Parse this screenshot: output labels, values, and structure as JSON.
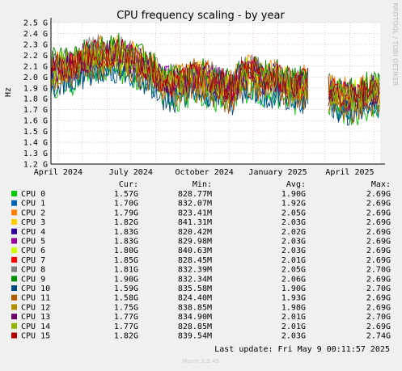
{
  "chart_data": {
    "type": "line",
    "title": "CPU frequency scaling - by year",
    "ylabel": "Hz",
    "side_label": "RRDTOOL / TOBI OETIKER",
    "x_range": [
      "2024-03-23",
      "2025-05-09"
    ],
    "x_ticks": [
      {
        "label": "April 2024",
        "date": "2024-04-01"
      },
      {
        "label": "July 2024",
        "date": "2024-07-01"
      },
      {
        "label": "October 2024",
        "date": "2024-10-01"
      },
      {
        "label": "January 2025",
        "date": "2025-01-01"
      },
      {
        "label": "April 2025",
        "date": "2025-04-01"
      }
    ],
    "y_range_ghz": [
      1.2,
      2.5
    ],
    "y_ticks": [
      "1.2 G",
      "1.3 G",
      "1.4 G",
      "1.5 G",
      "1.6 G",
      "1.7 G",
      "1.8 G",
      "1.9 G",
      "2.0 G",
      "2.1 G",
      "2.2 G",
      "2.3 G",
      "2.4 G",
      "2.5 G"
    ],
    "grid": true,
    "legend_placement": "bottom",
    "columns": [
      "Cur:",
      "Min:",
      "Avg:",
      "Max:"
    ],
    "gap": [
      "2025-02-08",
      "2025-03-05"
    ],
    "avg_profile_ghz": [
      [
        "2024-03-23",
        2.06
      ],
      [
        "2024-04-06",
        2.07
      ],
      [
        "2024-04-20",
        2.08
      ],
      [
        "2024-05-04",
        2.15
      ],
      [
        "2024-05-18",
        2.2
      ],
      [
        "2024-06-01",
        2.18
      ],
      [
        "2024-06-15",
        2.2
      ],
      [
        "2024-06-29",
        2.15
      ],
      [
        "2024-07-13",
        2.1
      ],
      [
        "2024-07-27",
        2.05
      ],
      [
        "2024-08-05",
        1.97
      ],
      [
        "2024-08-20",
        1.92
      ],
      [
        "2024-09-05",
        1.95
      ],
      [
        "2024-09-20",
        1.98
      ],
      [
        "2024-10-05",
        1.96
      ],
      [
        "2024-10-20",
        1.92
      ],
      [
        "2024-11-05",
        1.86
      ],
      [
        "2024-11-15",
        2.0
      ],
      [
        "2024-12-01",
        2.03
      ],
      [
        "2024-12-15",
        1.95
      ],
      [
        "2024-12-31",
        1.97
      ],
      [
        "2025-01-10",
        1.92
      ],
      [
        "2025-01-25",
        1.9
      ],
      [
        "2025-02-07",
        1.93
      ],
      [
        "2025-03-05",
        1.85
      ],
      [
        "2025-03-20",
        1.82
      ],
      [
        "2025-04-05",
        1.8
      ],
      [
        "2025-04-20",
        1.84
      ],
      [
        "2025-05-09",
        1.85
      ]
    ],
    "series": [
      {
        "name": "CPU 0",
        "color": "#00cc00",
        "cur": "1.57G",
        "min": "828.77M",
        "avg": "1.90G",
        "max": "2.69G"
      },
      {
        "name": "CPU 1",
        "color": "#0066b3",
        "cur": "1.70G",
        "min": "832.07M",
        "avg": "1.92G",
        "max": "2.69G"
      },
      {
        "name": "CPU 2",
        "color": "#ff8000",
        "cur": "1.79G",
        "min": "823.41M",
        "avg": "2.05G",
        "max": "2.69G"
      },
      {
        "name": "CPU 3",
        "color": "#ffcc00",
        "cur": "1.82G",
        "min": "841.31M",
        "avg": "2.03G",
        "max": "2.69G"
      },
      {
        "name": "CPU 4",
        "color": "#330099",
        "cur": "1.83G",
        "min": "820.42M",
        "avg": "2.02G",
        "max": "2.69G"
      },
      {
        "name": "CPU 5",
        "color": "#990099",
        "cur": "1.83G",
        "min": "829.98M",
        "avg": "2.03G",
        "max": "2.69G"
      },
      {
        "name": "CPU 6",
        "color": "#ccff00",
        "cur": "1.80G",
        "min": "840.63M",
        "avg": "2.03G",
        "max": "2.69G"
      },
      {
        "name": "CPU 7",
        "color": "#ff0000",
        "cur": "1.85G",
        "min": "828.45M",
        "avg": "2.01G",
        "max": "2.69G"
      },
      {
        "name": "CPU 8",
        "color": "#808080",
        "cur": "1.81G",
        "min": "832.39M",
        "avg": "2.05G",
        "max": "2.70G"
      },
      {
        "name": "CPU 9",
        "color": "#008f00",
        "cur": "1.90G",
        "min": "832.34M",
        "avg": "2.06G",
        "max": "2.69G"
      },
      {
        "name": "CPU 10",
        "color": "#00487d",
        "cur": "1.59G",
        "min": "835.58M",
        "avg": "1.90G",
        "max": "2.70G"
      },
      {
        "name": "CPU 11",
        "color": "#b35a00",
        "cur": "1.58G",
        "min": "824.40M",
        "avg": "1.93G",
        "max": "2.69G"
      },
      {
        "name": "CPU 12",
        "color": "#b38f00",
        "cur": "1.75G",
        "min": "838.85M",
        "avg": "1.98G",
        "max": "2.69G"
      },
      {
        "name": "CPU 13",
        "color": "#6b006b",
        "cur": "1.77G",
        "min": "834.90M",
        "avg": "2.01G",
        "max": "2.70G"
      },
      {
        "name": "CPU 14",
        "color": "#8fb300",
        "cur": "1.77G",
        "min": "828.85M",
        "avg": "2.01G",
        "max": "2.69G"
      },
      {
        "name": "CPU 15",
        "color": "#b30000",
        "cur": "1.82G",
        "min": "839.54M",
        "avg": "2.03G",
        "max": "2.74G"
      }
    ]
  },
  "footer": {
    "last_update": "Last update: Fri May  9 00:11:57 2025",
    "munin": "Munin 2.0.49"
  }
}
